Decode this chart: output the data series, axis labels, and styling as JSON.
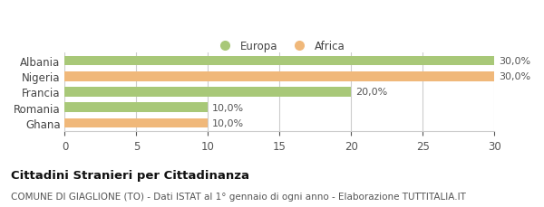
{
  "categories": [
    "Albania",
    "Nigeria",
    "Francia",
    "Romania",
    "Ghana"
  ],
  "values": [
    30.0,
    30.0,
    20.0,
    10.0,
    10.0
  ],
  "colors": [
    "#a8c878",
    "#f0b87a",
    "#a8c878",
    "#a8c878",
    "#f0b87a"
  ],
  "bar_labels": [
    "30,0%",
    "30,0%",
    "20,0%",
    "10,0%",
    "10,0%"
  ],
  "xlim": [
    0,
    30
  ],
  "xticks": [
    0,
    5,
    10,
    15,
    20,
    25,
    30
  ],
  "legend_europa_color": "#a8c878",
  "legend_africa_color": "#f0b87a",
  "legend_europa_label": "Europa",
  "legend_africa_label": "Africa",
  "title_bold": "Cittadini Stranieri per Cittadinanza",
  "subtitle": "COMUNE DI GIAGLIONE (TO) - Dati ISTAT al 1° gennaio di ogni anno - Elaborazione TUTTITALIA.IT",
  "background_color": "#ffffff",
  "grid_color": "#cccccc",
  "bar_height": 0.62,
  "title_fontsize": 9.5,
  "subtitle_fontsize": 7.5,
  "tick_fontsize": 8.5,
  "label_fontsize": 8,
  "legend_fontsize": 8.5
}
